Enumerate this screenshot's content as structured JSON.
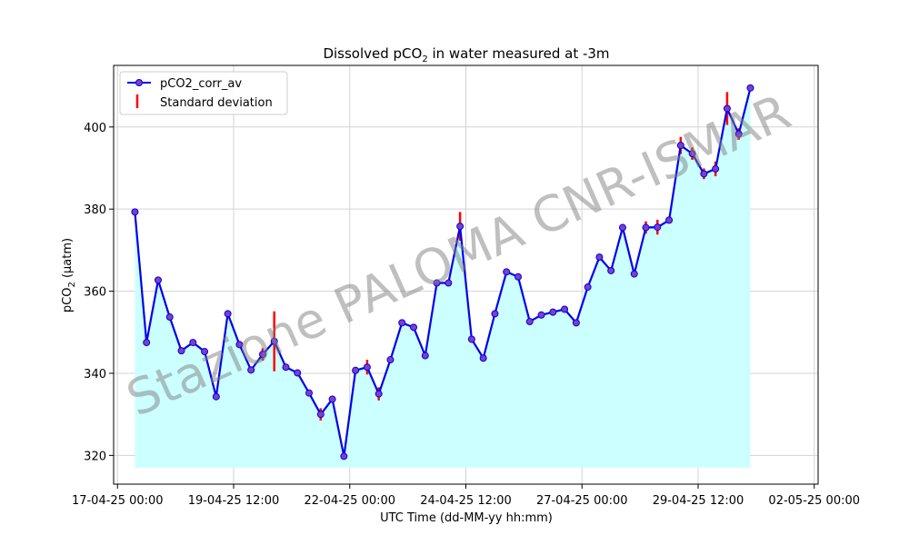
{
  "chart_data": {
    "type": "line",
    "title_main": "Dissolved pCO",
    "title_sub": "2",
    "title_rest": " in water measured at -3m",
    "xlabel": "UTC Time (dd-MM-yy hh:mm)",
    "ylabel_main": "pCO",
    "ylabel_sub": "2",
    "ylabel_rest": " (µatm)",
    "x_ticks": [
      "17-04-25 00:00",
      "19-04-25 12:00",
      "22-04-25 00:00",
      "24-04-25 12:00",
      "27-04-25 00:00",
      "29-04-25 12:00",
      "02-05-25 00:00"
    ],
    "x_tick_hours": [
      0,
      60,
      120,
      180,
      240,
      300,
      360
    ],
    "xlim_hours": [
      -2,
      362
    ],
    "y_ticks": [
      320,
      340,
      360,
      380,
      400
    ],
    "ylim": [
      313,
      415
    ],
    "fill_baseline": 317,
    "legend": {
      "position": "upper left",
      "line_label": "pCO2_corr_av",
      "std_label": "Standard deviation"
    },
    "watermark": "Stazione PALOMA CNR-ISMAR",
    "colors": {
      "line": "#0000ee",
      "marker_fill": "#7f3fbf",
      "std": "#ff0000",
      "fill": "#ccffff",
      "grid": "#d3d3d3"
    },
    "series": [
      {
        "name": "pCO2_corr_av",
        "x_hours": [
          9,
          15,
          21,
          27,
          33,
          39,
          45,
          51,
          57,
          63,
          69,
          75,
          81,
          87,
          93,
          99,
          105,
          111,
          117,
          123,
          129,
          135,
          141,
          147,
          153,
          159,
          165,
          171,
          177,
          183,
          189,
          195,
          201,
          207,
          213,
          219,
          225,
          231,
          237,
          243,
          249,
          255,
          261,
          267,
          273,
          279,
          285,
          291,
          297,
          303,
          309,
          315,
          321,
          327
        ],
        "values": [
          379.3,
          347.5,
          362.7,
          353.7,
          345.5,
          347.5,
          345.3,
          334.3,
          354.5,
          347,
          340.8,
          344.6,
          347.8,
          341.5,
          340.1,
          335.2,
          330,
          333.7,
          319.8,
          340.7,
          341.5,
          335,
          343.3,
          352.3,
          351.2,
          344.3,
          362,
          362,
          375.8,
          348.3,
          343.7,
          354.5,
          364.7,
          363.5,
          352.6,
          354.2,
          354.9,
          355.6,
          352.3,
          361,
          368.3,
          365,
          375.5,
          364.2,
          375.5,
          375.6,
          377.3,
          395.5,
          393.5,
          388.6,
          389.8,
          404.5,
          398.3,
          409.5
        ],
        "std": [
          0.3,
          0.4,
          0.3,
          0.5,
          0.4,
          0.3,
          0.4,
          0.6,
          0.4,
          0.3,
          0.4,
          1.5,
          7.3,
          0.3,
          0.4,
          0.5,
          1.5,
          0.5,
          0.5,
          0.5,
          1.8,
          1.6,
          0.5,
          0.4,
          0.3,
          0.7,
          0.4,
          0.4,
          3.5,
          0.4,
          0.5,
          0.4,
          0.6,
          0.8,
          0.5,
          0.4,
          0.4,
          0.3,
          0.7,
          0.5,
          0.4,
          0.4,
          0.6,
          0.6,
          1.5,
          1.8,
          0.5,
          2.1,
          1.5,
          1.3,
          1.8,
          4,
          1.4,
          0.4
        ]
      }
    ]
  }
}
